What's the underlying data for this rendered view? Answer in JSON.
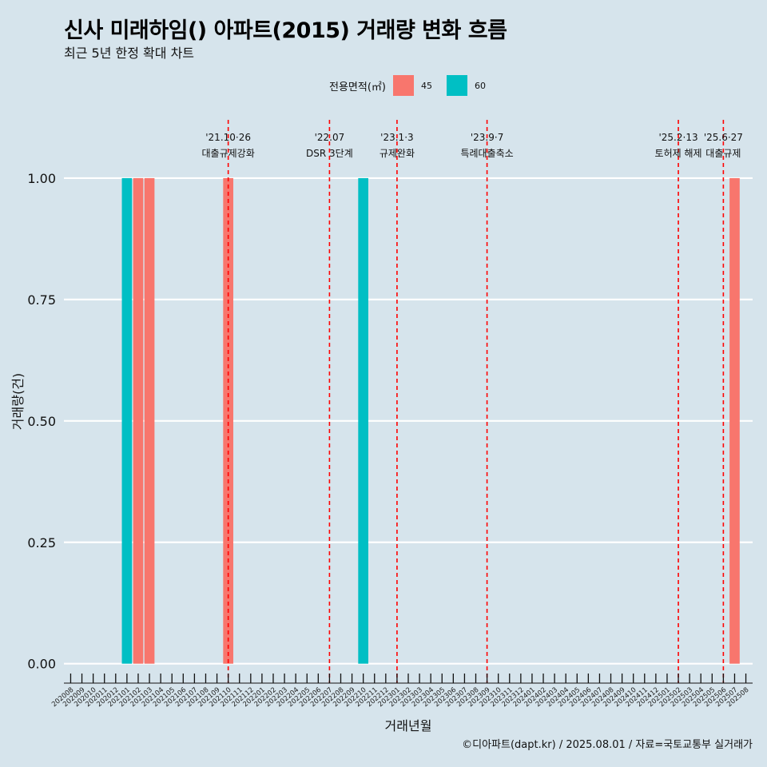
{
  "chart_data": {
    "type": "bar",
    "title": "신사 미래하임() 아파트(2015) 거래량 변화 흐름",
    "subtitle": "최근 5년 한정 확대 차트",
    "xlabel": "거래년월",
    "ylabel": "거래량(건)",
    "ylim": [
      -0.04,
      1.12
    ],
    "y_ticks": [
      0,
      0.25,
      0.5,
      0.75,
      1
    ],
    "y_tick_labels": [
      "0.00",
      "0.25",
      "0.50",
      "0.75",
      "1.00"
    ],
    "grid": "horizontal",
    "legend_position": "top",
    "legend_title": "전용면적(㎡)",
    "categories": [
      "202008",
      "202009",
      "202010",
      "202011",
      "202012",
      "202101",
      "202102",
      "202103",
      "202104",
      "202105",
      "202106",
      "202107",
      "202108",
      "202109",
      "202110",
      "202111",
      "202112",
      "202201",
      "202202",
      "202203",
      "202204",
      "202205",
      "202206",
      "202207",
      "202208",
      "202209",
      "202210",
      "202211",
      "202212",
      "202301",
      "202302",
      "202303",
      "202304",
      "202305",
      "202306",
      "202307",
      "202308",
      "202309",
      "202310",
      "202311",
      "202312",
      "202401",
      "202402",
      "202403",
      "202404",
      "202405",
      "202406",
      "202407",
      "202408",
      "202409",
      "202410",
      "202411",
      "202412",
      "202501",
      "202502",
      "202503",
      "202504",
      "202505",
      "202506",
      "202507",
      "202508"
    ],
    "series": [
      {
        "name": "45",
        "color": "#f8766d",
        "points": [
          {
            "x": "202102",
            "y": 1
          },
          {
            "x": "202103",
            "y": 1
          },
          {
            "x": "202110",
            "y": 1
          },
          {
            "x": "202507",
            "y": 1
          }
        ]
      },
      {
        "name": "60",
        "color": "#00bfc4",
        "points": [
          {
            "x": "202101",
            "y": 1
          },
          {
            "x": "202210",
            "y": 1
          }
        ]
      }
    ],
    "annotations": [
      {
        "x": "202110",
        "line1": "'21.10·26",
        "line2": "대출규제강화"
      },
      {
        "x": "202207",
        "line1": "'22.07",
        "line2": "DSR 3단계"
      },
      {
        "x": "202301",
        "line1": "'23.1·3",
        "line2": "규제완화"
      },
      {
        "x": "202309",
        "line1": "'23.9·7",
        "line2": "특례대출축소"
      },
      {
        "x": "202502",
        "line1": "'25.2·13",
        "line2": "토허제 해제"
      },
      {
        "x": "202506",
        "line1": "'25.6·27",
        "line2": "대출규제"
      }
    ]
  },
  "caption": "©디아파트(dapt.kr) / 2025.08.01 / 자료=국토교통부 실거래가"
}
